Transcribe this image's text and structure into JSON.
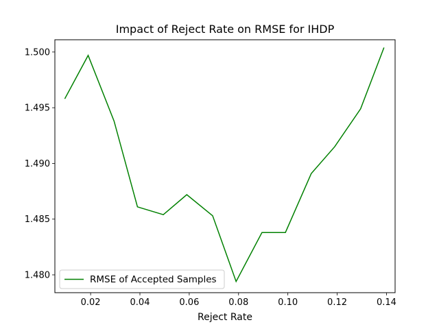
{
  "chart_data": {
    "type": "line",
    "title": "Impact of Reject Rate on RMSE for IHDP",
    "xlabel": "Reject Rate",
    "ylabel": "",
    "xlim": [
      0.0055,
      0.1435
    ],
    "ylim": [
      1.4784,
      1.5011
    ],
    "xticks": [
      0.02,
      0.04,
      0.06,
      0.08,
      0.1,
      0.12,
      0.14
    ],
    "xtick_labels": [
      "0.02",
      "0.04",
      "0.06",
      "0.08",
      "0.10",
      "0.12",
      "0.14"
    ],
    "yticks": [
      1.48,
      1.485,
      1.49,
      1.495,
      1.5
    ],
    "ytick_labels": [
      "1.480",
      "1.485",
      "1.490",
      "1.495",
      "1.500"
    ],
    "grid": false,
    "legend_position": "lower-left",
    "series": [
      {
        "name": "RMSE of Accepted Samples",
        "color": "#008000",
        "x": [
          0.0095,
          0.019,
          0.0295,
          0.039,
          0.0495,
          0.059,
          0.0695,
          0.079,
          0.0895,
          0.099,
          0.1095,
          0.119,
          0.1295,
          0.139
        ],
        "y": [
          1.4958,
          1.4997,
          1.4938,
          1.4861,
          1.4854,
          1.4872,
          1.4853,
          1.4794,
          1.4838,
          1.4838,
          1.4891,
          1.4915,
          1.4949,
          1.5004
        ]
      }
    ]
  }
}
